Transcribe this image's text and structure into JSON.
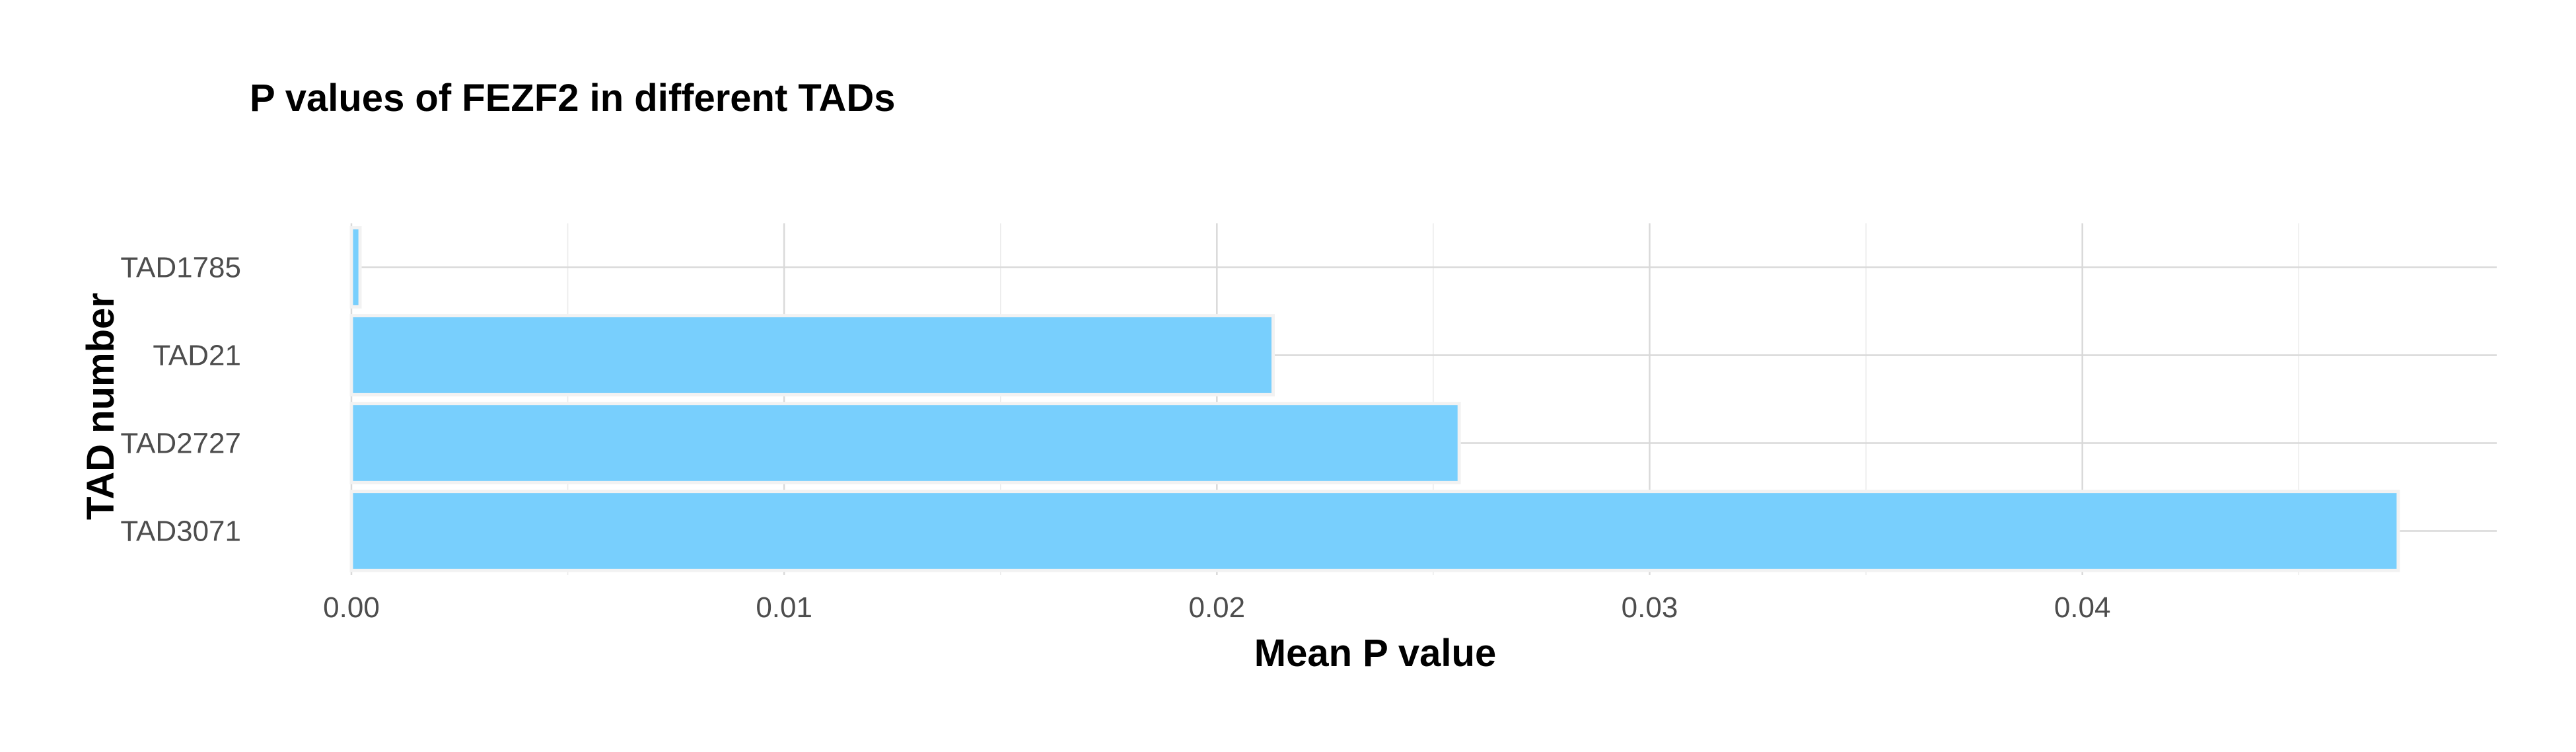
{
  "chart_data": {
    "type": "bar",
    "orientation": "horizontal",
    "title": "P values of FEZF2 in different TADs",
    "xlabel": "Mean P value",
    "ylabel": "TAD number",
    "categories": [
      "TAD1785",
      "TAD21",
      "TAD2727",
      "TAD3071"
    ],
    "values": [
      0.0002,
      0.0213,
      0.0256,
      0.0473
    ],
    "xlim": [
      0,
      0.0497
    ],
    "x_ticks": [
      0.0,
      0.01,
      0.02,
      0.03,
      0.04
    ],
    "x_tick_labels": [
      "0.00",
      "0.01",
      "0.02",
      "0.03",
      "0.04"
    ],
    "grid": true,
    "bar_color": "#75cefd"
  }
}
